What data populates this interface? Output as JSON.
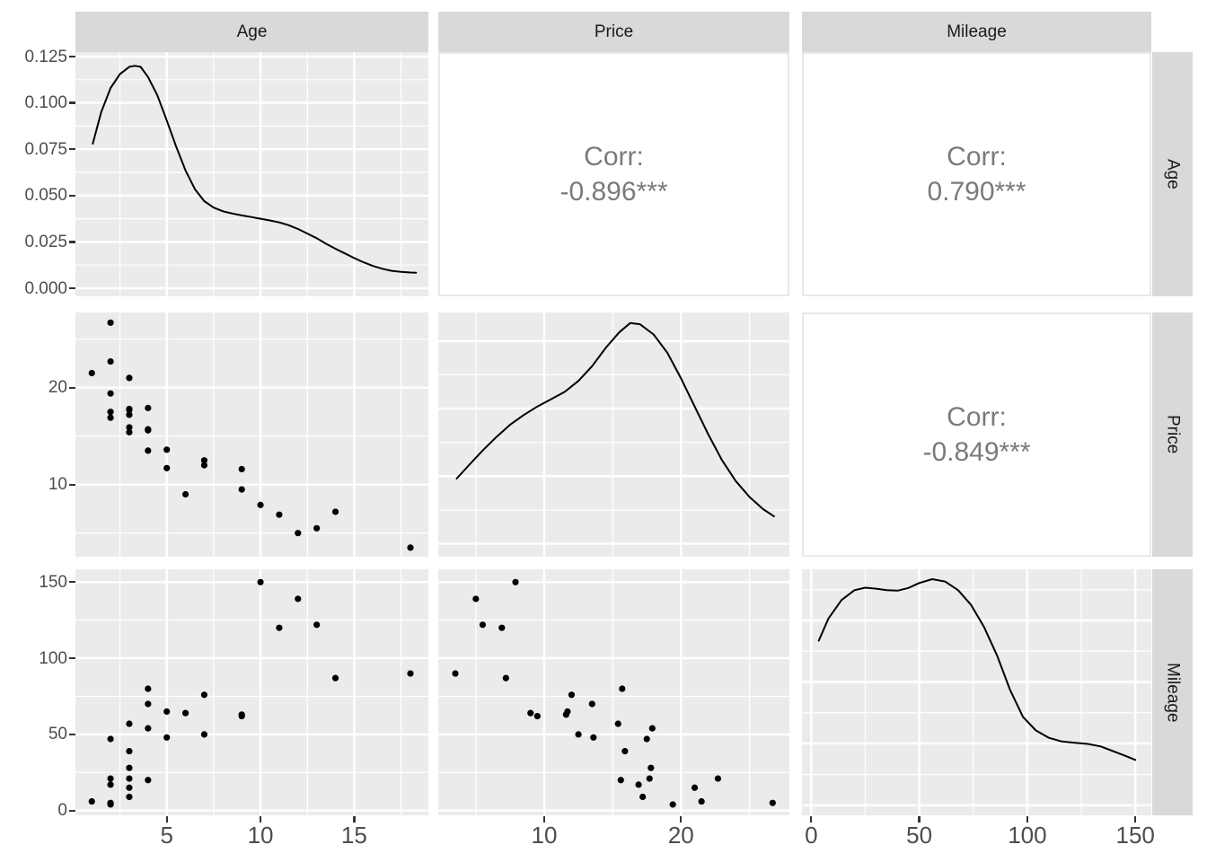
{
  "matrix": {
    "columns": [
      "Age",
      "Price",
      "Mileage"
    ],
    "rows": [
      "Age",
      "Price",
      "Mileage"
    ]
  },
  "colors": {
    "page_bg": "#ffffff",
    "panel_bg": "#ebebeb",
    "strip_bg": "#d9d9d9",
    "grid": "#ffffff",
    "point": "#000000",
    "density_line": "#000000",
    "corr_text": "#7b7b7b",
    "corr_panel_bg": "#ffffff",
    "corr_panel_border": "#e9e9e9",
    "axis_text": "#4d4d4d",
    "strip_text": "#1a1a1a",
    "tick": "#333333"
  },
  "chart_data": {
    "type": "scatter",
    "subtype": "scatterplot-matrix",
    "variables": [
      "Age",
      "Price",
      "Mileage"
    ],
    "points": [
      [
        1,
        21.5,
        6
      ],
      [
        2,
        26.7,
        5
      ],
      [
        2,
        22.7,
        21
      ],
      [
        2,
        19.4,
        4
      ],
      [
        2,
        17.5,
        47
      ],
      [
        2,
        16.9,
        17
      ],
      [
        3,
        21,
        15
      ],
      [
        3,
        17.8,
        28
      ],
      [
        3,
        17.7,
        21
      ],
      [
        3,
        17.2,
        9
      ],
      [
        3,
        15.9,
        39
      ],
      [
        3,
        15.4,
        57
      ],
      [
        4,
        17.9,
        54
      ],
      [
        4,
        15.7,
        80
      ],
      [
        4,
        15.6,
        20
      ],
      [
        4,
        13.5,
        70
      ],
      [
        5,
        13.6,
        48
      ],
      [
        5,
        11.7,
        65
      ],
      [
        6,
        9,
        64
      ],
      [
        7,
        12,
        76
      ],
      [
        7,
        12.5,
        50
      ],
      [
        9,
        11.6,
        63
      ],
      [
        9,
        9.5,
        62
      ],
      [
        10,
        7.9,
        150
      ],
      [
        11,
        6.9,
        120
      ],
      [
        12,
        5,
        139
      ],
      [
        13,
        5.5,
        122
      ],
      [
        14,
        7.2,
        87
      ],
      [
        18,
        3.5,
        90
      ]
    ],
    "correlations": [
      {
        "x": "Age",
        "y": "Price",
        "label": "Corr:",
        "value": "-0.896***"
      },
      {
        "x": "Age",
        "y": "Mileage",
        "label": "Corr:",
        "value": "0.790***"
      },
      {
        "x": "Price",
        "y": "Mileage",
        "label": "Corr:",
        "value": "-0.849***"
      }
    ],
    "densities": [
      {
        "var": "Age",
        "x": [
          1.05,
          1.5,
          2,
          2.5,
          3,
          3.3,
          3.6,
          4,
          4.5,
          5,
          5.5,
          6,
          6.5,
          7,
          7.5,
          8,
          8.5,
          9,
          9.5,
          10,
          10.5,
          11,
          11.5,
          12,
          12.5,
          13,
          13.5,
          14,
          14.5,
          15,
          15.5,
          16,
          16.5,
          17,
          17.5,
          18,
          18.3
        ],
        "y": [
          0.078,
          0.095,
          0.108,
          0.1155,
          0.1195,
          0.12,
          0.1195,
          0.114,
          0.104,
          0.0905,
          0.0765,
          0.0635,
          0.0535,
          0.047,
          0.0435,
          0.0415,
          0.0403,
          0.0393,
          0.0384,
          0.0375,
          0.0366,
          0.0355,
          0.034,
          0.032,
          0.0295,
          0.027,
          0.024,
          0.0213,
          0.0188,
          0.0163,
          0.014,
          0.012,
          0.0105,
          0.0094,
          0.0088,
          0.0085,
          0.0084
        ]
      },
      {
        "var": "Price",
        "x": [
          3.6,
          4.5,
          5.5,
          6.5,
          7.5,
          8.5,
          9.5,
          10.5,
          11.5,
          12.5,
          13.5,
          14.5,
          15.5,
          16.3,
          17,
          18,
          19,
          20,
          21,
          22,
          23,
          24,
          25,
          26,
          26.8
        ],
        "h": [
          0.32,
          0.375,
          0.435,
          0.49,
          0.54,
          0.58,
          0.615,
          0.645,
          0.675,
          0.72,
          0.78,
          0.855,
          0.92,
          0.957,
          0.952,
          0.91,
          0.835,
          0.73,
          0.615,
          0.5,
          0.395,
          0.31,
          0.245,
          0.195,
          0.165
        ]
      },
      {
        "var": "Mileage",
        "x": [
          3.5,
          8,
          14,
          20,
          25,
          30,
          35,
          40,
          45,
          50,
          56,
          62,
          68,
          74,
          80,
          86,
          92,
          98,
          104,
          110,
          116,
          122,
          128,
          134,
          140,
          145,
          150
        ],
        "h": [
          0.71,
          0.8,
          0.875,
          0.915,
          0.925,
          0.921,
          0.915,
          0.913,
          0.924,
          0.944,
          0.96,
          0.95,
          0.915,
          0.855,
          0.765,
          0.65,
          0.51,
          0.4,
          0.345,
          0.315,
          0.3,
          0.295,
          0.29,
          0.28,
          0.26,
          0.243,
          0.225
        ]
      }
    ],
    "axes": {
      "cols": [
        {
          "var": "Age",
          "majors": [
            5,
            10,
            15
          ],
          "minors": [
            2.5,
            7.5,
            12.5,
            17.5
          ],
          "labels": [
            "5",
            "10",
            "15"
          ]
        },
        {
          "var": "Price",
          "majors": [
            10,
            20
          ],
          "minors": [
            5,
            15,
            25
          ],
          "labels": [
            "10",
            "20"
          ]
        },
        {
          "var": "Mileage",
          "majors": [
            0,
            50,
            100,
            150
          ],
          "minors": [
            25,
            75,
            125
          ],
          "labels": [
            "0",
            "50",
            "100",
            "150"
          ]
        }
      ],
      "rows": [
        {
          "var": "density of Age",
          "majors": [
            0,
            0.025,
            0.05,
            0.075,
            0.1,
            0.125
          ],
          "minors": [
            0.0125,
            0.0375,
            0.0625,
            0.0875,
            0.1125
          ],
          "labels": [
            "0.000",
            "0.025",
            "0.050",
            "0.075",
            "0.100",
            "0.125"
          ]
        },
        {
          "var": "Price",
          "majors": [
            10,
            20
          ],
          "minors": [
            5,
            15,
            25
          ],
          "labels": [
            "10",
            "20"
          ]
        },
        {
          "var": "Mileage",
          "majors": [
            0,
            50,
            100,
            150
          ],
          "minors": [
            25,
            75,
            125
          ],
          "labels": [
            "0",
            "50",
            "100",
            "150"
          ]
        }
      ]
    },
    "density_grids": [
      null,
      {
        "majors": [
          0.053,
          0.33,
          0.607,
          0.882
        ],
        "minors": [
          0.191,
          0.468,
          0.745
        ]
      },
      {
        "majors": [
          0.041,
          0.292,
          0.542,
          0.792
        ],
        "minors": [
          0.166,
          0.417,
          0.667,
          0.917
        ]
      }
    ],
    "grid": true,
    "legend": "none"
  }
}
